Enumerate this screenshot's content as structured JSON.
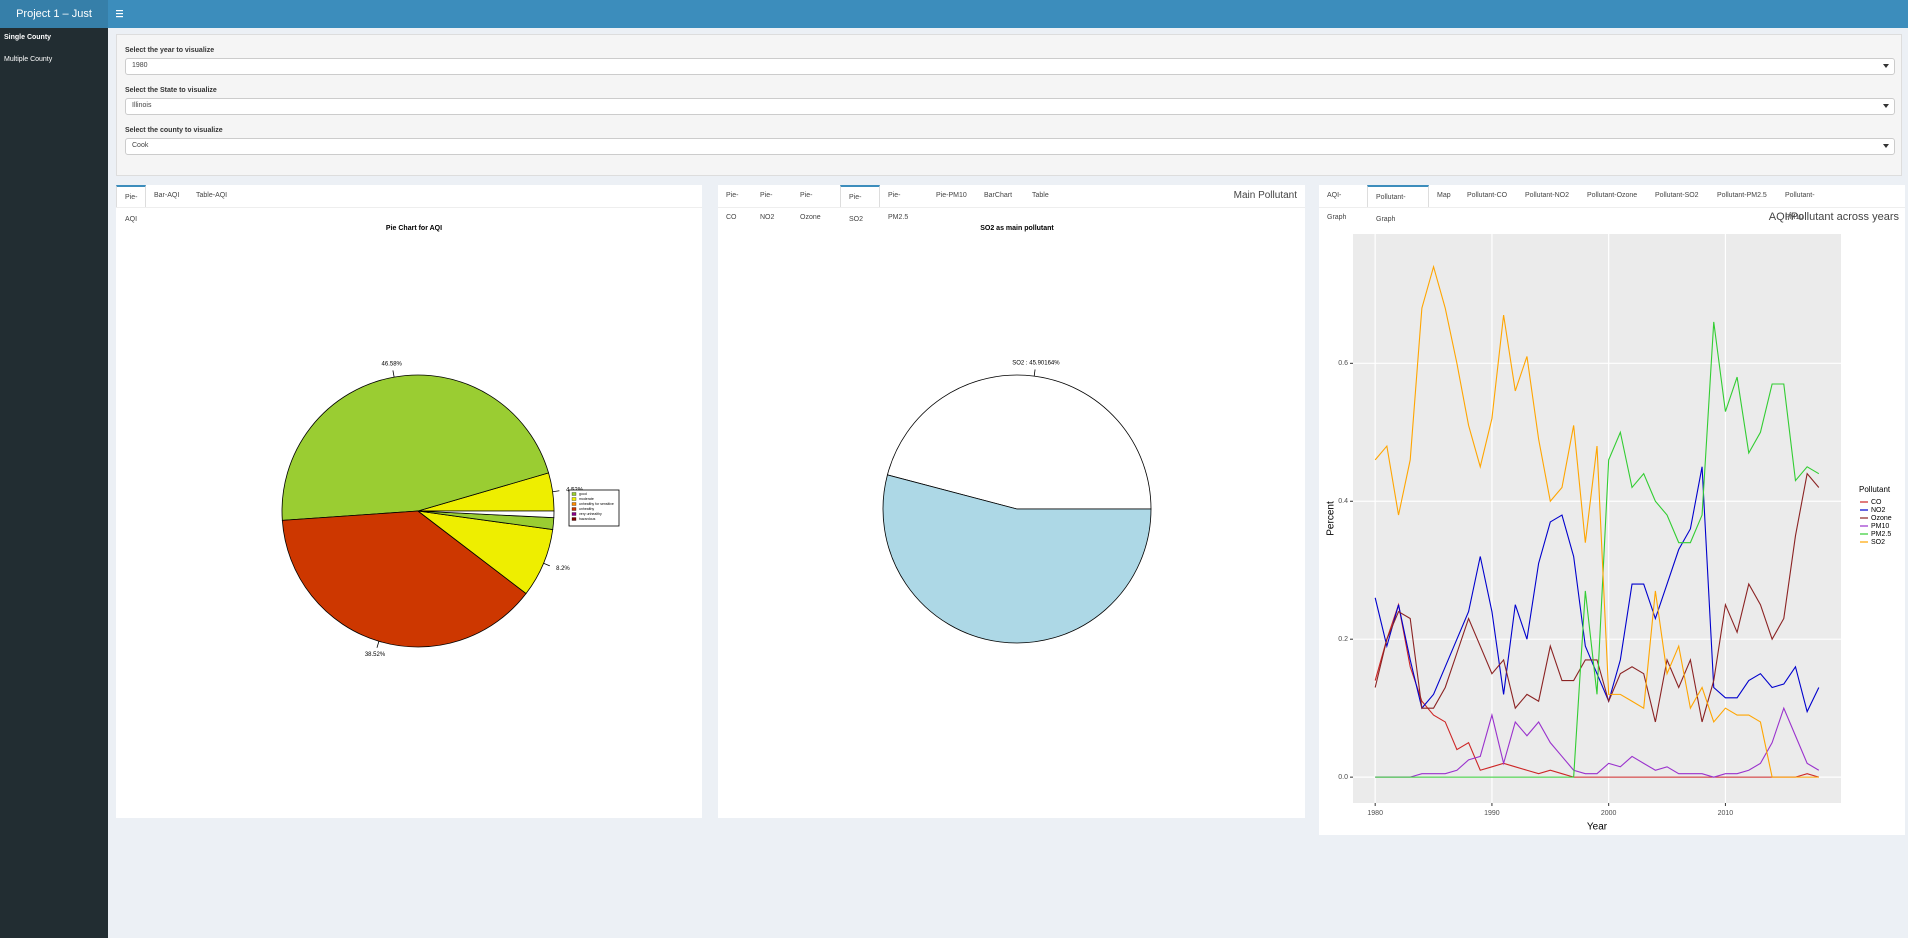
{
  "header": {
    "title": "Project 1 – Just"
  },
  "sidebar": {
    "items": [
      "Single County",
      "Multiple County"
    ]
  },
  "controls": [
    {
      "label": "Select the year to visualize",
      "value": "1980"
    },
    {
      "label": "Select the State to visualize",
      "value": "Illinois"
    },
    {
      "label": "Select the county to visualize",
      "value": "Cook"
    }
  ],
  "panels": [
    {
      "tabs": [
        "Pie-AQI",
        "Bar-AQI",
        "Table-AQI"
      ],
      "active_tab": 0
    },
    {
      "tabs": [
        "Pie-CO",
        "Pie-NO2",
        "Pie-Ozone",
        "Pie-SO2",
        "Pie-PM2.5",
        "Pie-PM10",
        "BarChart",
        "Table"
      ],
      "active_tab": 3,
      "title": "Main Pollutant"
    },
    {
      "tabs": [
        "AQI-Graph",
        "Pollutant-Graph",
        "Map",
        "Pollutant-CO",
        "Pollutant-NO2",
        "Pollutant-Ozone",
        "Pollutant-SO2",
        "Pollutant-PM2.5",
        "Pollutant-PM10"
      ],
      "active_tab": 1
    }
  ],
  "chart_data": [
    {
      "type": "pie",
      "title": "Pie Chart for AQI",
      "values": [
        4.52,
        46.58,
        38.52,
        8.2,
        1.4,
        0.78
      ],
      "value_labels": [
        "4.52%",
        "46.58%",
        "38.52%",
        "8.2%",
        null,
        null
      ],
      "colors": [
        "#EEEE00",
        "#9ACD32",
        "#CD3700",
        "#EEEE00",
        "#9ACD32",
        "#FFFFFF"
      ],
      "legend": {
        "labels": [
          "good",
          "moderate",
          "unhealthy for sensitive",
          "unhealthy",
          "very unhealthy",
          "hazardous"
        ],
        "colors": [
          "#9ACD32",
          "#EEEE00",
          "#FF8C00",
          "#CD3700",
          "#8B008B",
          "#800000"
        ]
      }
    },
    {
      "type": "pie",
      "title": "SO2 as main pollutant",
      "values": [
        45.90164,
        54.09836
      ],
      "value_labels": [
        "SO2 : 45.90164%",
        null
      ],
      "colors": [
        "#FFFFFF",
        "#ADD8E6"
      ]
    },
    {
      "type": "line",
      "title": "AQI/Pollutant across years",
      "x_label": "Year",
      "y_label": "Percent",
      "legend_title": "Pollutant",
      "x": [
        1980,
        1981,
        1982,
        1983,
        1984,
        1985,
        1986,
        1987,
        1988,
        1989,
        1990,
        1991,
        1992,
        1993,
        1994,
        1995,
        1996,
        1997,
        1998,
        1999,
        2000,
        2001,
        2002,
        2003,
        2004,
        2005,
        2006,
        2007,
        2008,
        2009,
        2010,
        2011,
        2012,
        2013,
        2014,
        2015,
        2016,
        2017,
        2018
      ],
      "xlim": [
        1978.1,
        2019.9
      ],
      "xticks": [
        1980,
        1990,
        2000,
        2010
      ],
      "ylim": [
        -0.0375,
        0.7875
      ],
      "yticks": [
        {
          "value": 0,
          "label": "0.0"
        },
        0.2,
        0.4,
        0.6
      ],
      "grid": true,
      "series": [
        {
          "name": "CO",
          "color": "#CD2626",
          "values": [
            0.14,
            0.2,
            0.25,
            0.16,
            0.11,
            0.09,
            0.08,
            0.04,
            0.05,
            0.01,
            0.015,
            0.02,
            0.015,
            0.01,
            0.005,
            0.01,
            0.005,
            0,
            0,
            0,
            0,
            0,
            0,
            0,
            0,
            0,
            0,
            0,
            0,
            0,
            0,
            0,
            0,
            0,
            0,
            0,
            0,
            0.005,
            0
          ]
        },
        {
          "name": "NO2",
          "color": "#0000CD",
          "values": [
            0.26,
            0.19,
            0.25,
            0.17,
            0.1,
            0.12,
            0.16,
            0.2,
            0.24,
            0.32,
            0.24,
            0.12,
            0.25,
            0.2,
            0.31,
            0.37,
            0.38,
            0.32,
            0.19,
            0.15,
            0.11,
            0.17,
            0.28,
            0.28,
            0.23,
            0.28,
            0.33,
            0.36,
            0.45,
            0.13,
            0.115,
            0.115,
            0.14,
            0.15,
            0.13,
            0.135,
            0.16,
            0.095,
            0.13
          ]
        },
        {
          "name": "Ozone",
          "color": "#8B2323",
          "values": [
            0.13,
            0.2,
            0.24,
            0.23,
            0.1,
            0.1,
            0.13,
            0.18,
            0.23,
            0.19,
            0.15,
            0.17,
            0.1,
            0.12,
            0.11,
            0.19,
            0.14,
            0.14,
            0.17,
            0.17,
            0.11,
            0.15,
            0.16,
            0.15,
            0.08,
            0.17,
            0.13,
            0.17,
            0.08,
            0.14,
            0.25,
            0.21,
            0.28,
            0.25,
            0.2,
            0.23,
            0.35,
            0.44,
            0.42
          ]
        },
        {
          "name": "PM10",
          "color": "#9A32CD",
          "values": [
            0,
            0,
            0,
            0,
            0.005,
            0.005,
            0.005,
            0.01,
            0.025,
            0.03,
            0.09,
            0.02,
            0.08,
            0.06,
            0.08,
            0.05,
            0.03,
            0.01,
            0.005,
            0.005,
            0.02,
            0.015,
            0.03,
            0.02,
            0.01,
            0.015,
            0.005,
            0.005,
            0.005,
            0,
            0.005,
            0.005,
            0.01,
            0.02,
            0.05,
            0.1,
            0.06,
            0.02,
            0.01
          ]
        },
        {
          "name": "PM2.5",
          "color": "#32CD32",
          "values": [
            0,
            0,
            0,
            0,
            0,
            0,
            0,
            0,
            0,
            0,
            0,
            0,
            0,
            0,
            0,
            0,
            0,
            0,
            0.27,
            0.12,
            0.46,
            0.5,
            0.42,
            0.44,
            0.4,
            0.38,
            0.34,
            0.34,
            0.38,
            0.66,
            0.53,
            0.58,
            0.47,
            0.5,
            0.57,
            0.57,
            0.43,
            0.45,
            0.44
          ]
        },
        {
          "name": "SO2",
          "color": "#FFA500",
          "values": [
            0.46,
            0.48,
            0.38,
            0.46,
            0.68,
            0.74,
            0.68,
            0.6,
            0.51,
            0.45,
            0.52,
            0.67,
            0.56,
            0.61,
            0.49,
            0.4,
            0.42,
            0.51,
            0.34,
            0.48,
            0.12,
            0.12,
            0.11,
            0.1,
            0.27,
            0.15,
            0.19,
            0.1,
            0.13,
            0.08,
            0.1,
            0.09,
            0.09,
            0.08,
            0,
            0,
            0,
            0,
            0
          ]
        }
      ]
    }
  ]
}
